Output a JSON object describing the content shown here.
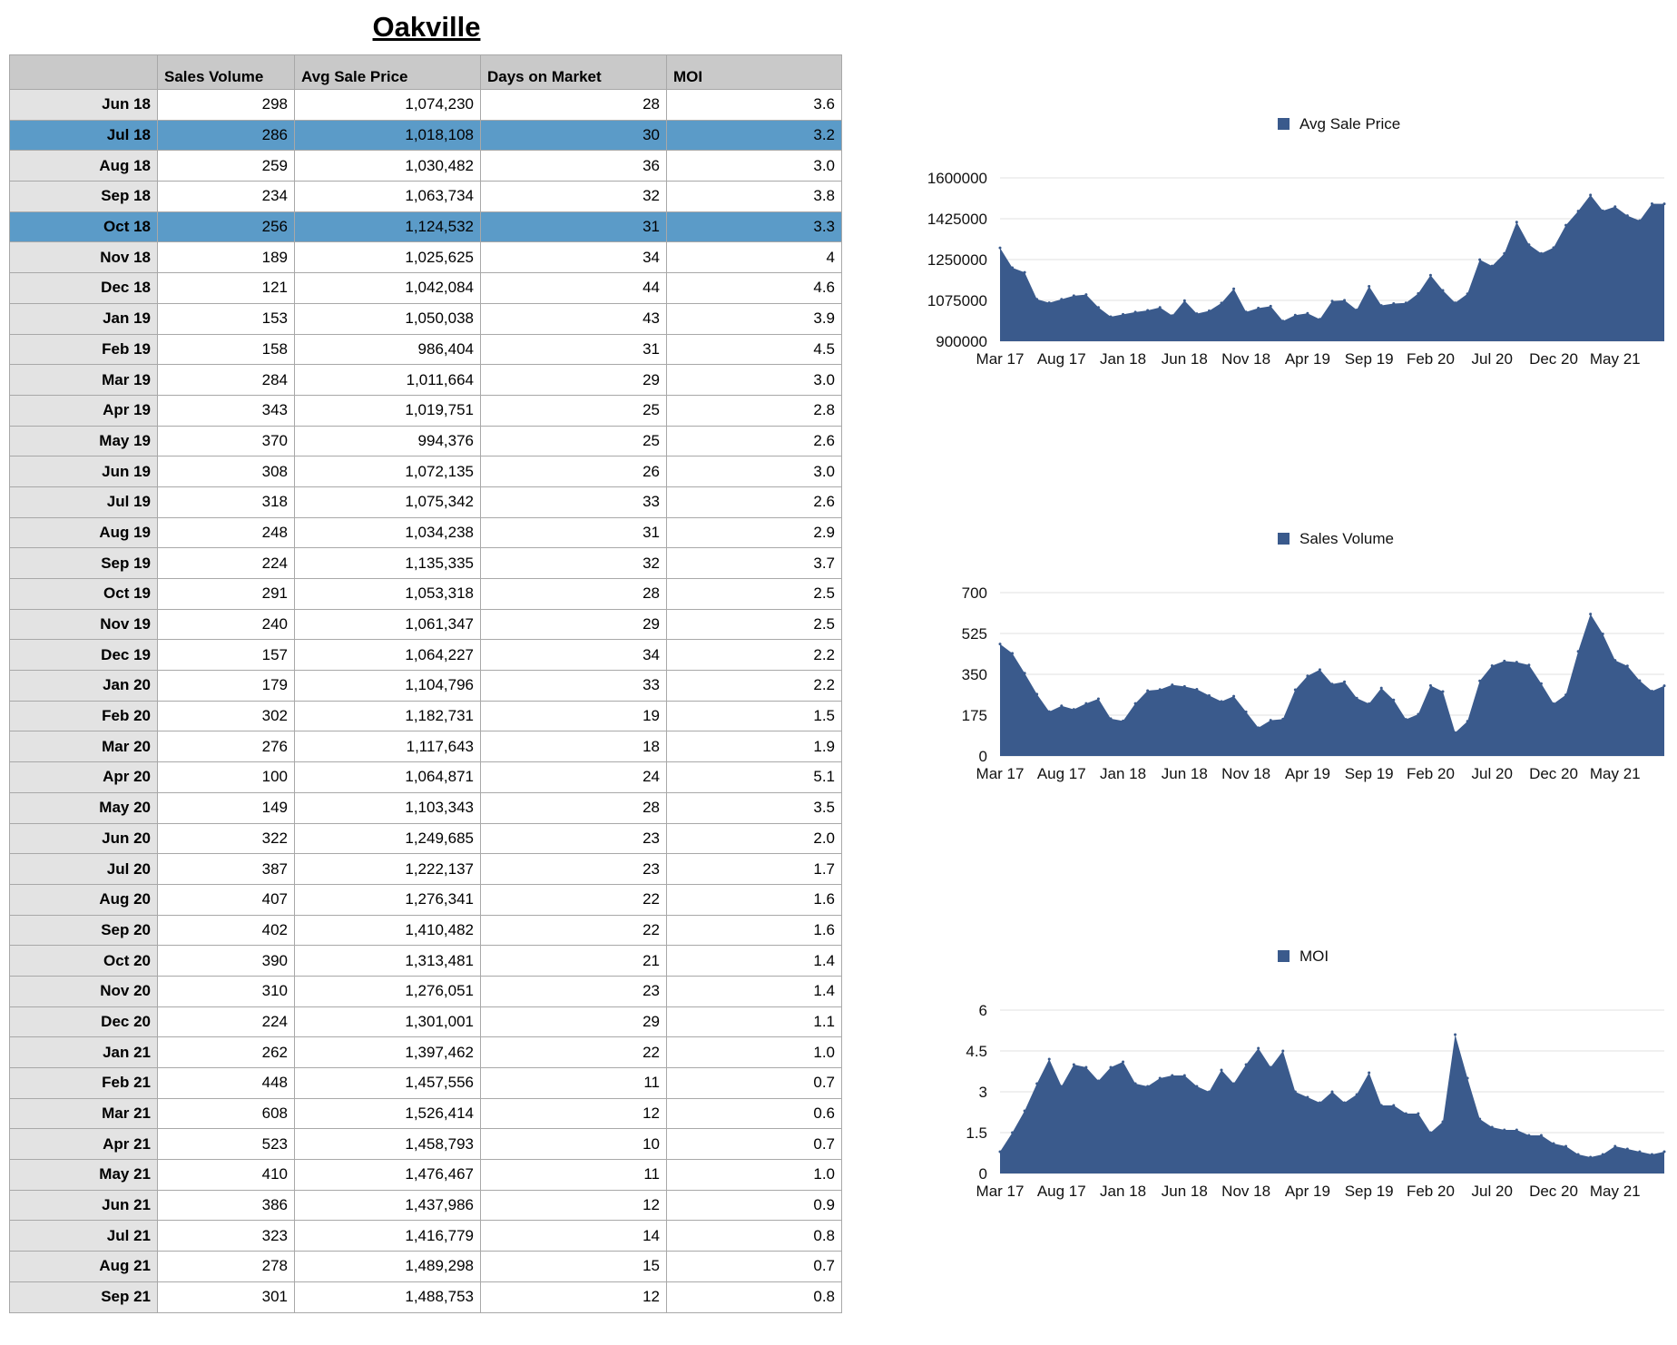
{
  "title": "Oakville",
  "table": {
    "headers": [
      "",
      "Sales Volume",
      "Avg Sale Price",
      "Days on Market",
      "MOI"
    ],
    "highlighted_months": [
      "Jul 18",
      "Oct 18"
    ],
    "rows": [
      [
        "Jun 18",
        "298",
        "1,074,230",
        "28",
        "3.6"
      ],
      [
        "Jul 18",
        "286",
        "1,018,108",
        "30",
        "3.2"
      ],
      [
        "Aug 18",
        "259",
        "1,030,482",
        "36",
        "3.0"
      ],
      [
        "Sep 18",
        "234",
        "1,063,734",
        "32",
        "3.8"
      ],
      [
        "Oct 18",
        "256",
        "1,124,532",
        "31",
        "3.3"
      ],
      [
        "Nov 18",
        "189",
        "1,025,625",
        "34",
        "4"
      ],
      [
        "Dec 18",
        "121",
        "1,042,084",
        "44",
        "4.6"
      ],
      [
        "Jan 19",
        "153",
        "1,050,038",
        "43",
        "3.9"
      ],
      [
        "Feb 19",
        "158",
        "986,404",
        "31",
        "4.5"
      ],
      [
        "Mar 19",
        "284",
        "1,011,664",
        "29",
        "3.0"
      ],
      [
        "Apr 19",
        "343",
        "1,019,751",
        "25",
        "2.8"
      ],
      [
        "May 19",
        "370",
        "994,376",
        "25",
        "2.6"
      ],
      [
        "Jun 19",
        "308",
        "1,072,135",
        "26",
        "3.0"
      ],
      [
        "Jul 19",
        "318",
        "1,075,342",
        "33",
        "2.6"
      ],
      [
        "Aug 19",
        "248",
        "1,034,238",
        "31",
        "2.9"
      ],
      [
        "Sep 19",
        "224",
        "1,135,335",
        "32",
        "3.7"
      ],
      [
        "Oct 19",
        "291",
        "1,053,318",
        "28",
        "2.5"
      ],
      [
        "Nov 19",
        "240",
        "1,061,347",
        "29",
        "2.5"
      ],
      [
        "Dec 19",
        "157",
        "1,064,227",
        "34",
        "2.2"
      ],
      [
        "Jan 20",
        "179",
        "1,104,796",
        "33",
        "2.2"
      ],
      [
        "Feb 20",
        "302",
        "1,182,731",
        "19",
        "1.5"
      ],
      [
        "Mar 20",
        "276",
        "1,117,643",
        "18",
        "1.9"
      ],
      [
        "Apr 20",
        "100",
        "1,064,871",
        "24",
        "5.1"
      ],
      [
        "May 20",
        "149",
        "1,103,343",
        "28",
        "3.5"
      ],
      [
        "Jun 20",
        "322",
        "1,249,685",
        "23",
        "2.0"
      ],
      [
        "Jul 20",
        "387",
        "1,222,137",
        "23",
        "1.7"
      ],
      [
        "Aug 20",
        "407",
        "1,276,341",
        "22",
        "1.6"
      ],
      [
        "Sep 20",
        "402",
        "1,410,482",
        "22",
        "1.6"
      ],
      [
        "Oct 20",
        "390",
        "1,313,481",
        "21",
        "1.4"
      ],
      [
        "Nov 20",
        "310",
        "1,276,051",
        "23",
        "1.4"
      ],
      [
        "Dec 20",
        "224",
        "1,301,001",
        "29",
        "1.1"
      ],
      [
        "Jan 21",
        "262",
        "1,397,462",
        "22",
        "1.0"
      ],
      [
        "Feb 21",
        "448",
        "1,457,556",
        "11",
        "0.7"
      ],
      [
        "Mar 21",
        "608",
        "1,526,414",
        "12",
        "0.6"
      ],
      [
        "Apr 21",
        "523",
        "1,458,793",
        "10",
        "0.7"
      ],
      [
        "May 21",
        "410",
        "1,476,467",
        "11",
        "1.0"
      ],
      [
        "Jun 21",
        "386",
        "1,437,986",
        "12",
        "0.9"
      ],
      [
        "Jul 21",
        "323",
        "1,416,779",
        "14",
        "0.8"
      ],
      [
        "Aug 21",
        "278",
        "1,489,298",
        "15",
        "0.7"
      ],
      [
        "Sep 21",
        "301",
        "1,488,753",
        "12",
        "0.8"
      ]
    ]
  },
  "colors": {
    "series": "#3a5a8c",
    "highlight": "#5b9bc8",
    "row_header": "#e3e3e3",
    "column_header": "#c9c9c9"
  },
  "chart_data": [
    {
      "type": "area",
      "series_name": "Avg Sale Price",
      "ylim": [
        900000,
        1600000
      ],
      "yticks": [
        "900000",
        "1075000",
        "1250000",
        "1425000",
        "1600000"
      ],
      "xticks": [
        "Mar 17",
        "Aug 17",
        "Jan 18",
        "Jun 18",
        "Nov 18",
        "Apr 19",
        "Sep 19",
        "Feb 20",
        "Jul 20",
        "Dec 20",
        "May 21"
      ],
      "legend": "top",
      "x": [
        "Mar 17",
        "Apr 17",
        "May 17",
        "Jun 17",
        "Jul 17",
        "Aug 17",
        "Sep 17",
        "Oct 17",
        "Nov 17",
        "Dec 17",
        "Jan 18",
        "Feb 18",
        "Mar 18",
        "Apr 18",
        "May 18",
        "Jun 18",
        "Jul 18",
        "Aug 18",
        "Sep 18",
        "Oct 18",
        "Nov 18",
        "Dec 18",
        "Jan 19",
        "Feb 19",
        "Mar 19",
        "Apr 19",
        "May 19",
        "Jun 19",
        "Jul 19",
        "Aug 19",
        "Sep 19",
        "Oct 19",
        "Nov 19",
        "Dec 19",
        "Jan 20",
        "Feb 20",
        "Mar 20",
        "Apr 20",
        "May 20",
        "Jun 20",
        "Jul 20",
        "Aug 20",
        "Sep 20",
        "Oct 20",
        "Nov 20",
        "Dec 20",
        "Jan 21",
        "Feb 21",
        "Mar 21",
        "Apr 21",
        "May 21",
        "Jun 21",
        "Jul 21",
        "Aug 21",
        "Sep 21"
      ],
      "values": [
        1300000,
        1215000,
        1195000,
        1080000,
        1065000,
        1080000,
        1095000,
        1100000,
        1045000,
        1005000,
        1015000,
        1025000,
        1032000,
        1045000,
        1010000,
        1074230,
        1018108,
        1030482,
        1063734,
        1124532,
        1025625,
        1042084,
        1050038,
        986404,
        1011664,
        1019751,
        994376,
        1072135,
        1075342,
        1034238,
        1135335,
        1053318,
        1061347,
        1064227,
        1104796,
        1182731,
        1117643,
        1064871,
        1103343,
        1249685,
        1222137,
        1276341,
        1410482,
        1313481,
        1276051,
        1301001,
        1397462,
        1457556,
        1526414,
        1458793,
        1476467,
        1437986,
        1416779,
        1489298,
        1488753
      ]
    },
    {
      "type": "area",
      "series_name": "Sales Volume",
      "ylim": [
        0,
        700
      ],
      "yticks": [
        "0",
        "175",
        "350",
        "525",
        "700"
      ],
      "xticks": [
        "Mar 17",
        "Aug 17",
        "Jan 18",
        "Jun 18",
        "Nov 18",
        "Apr 19",
        "Sep 19",
        "Feb 20",
        "Jul 20",
        "Dec 20",
        "May 21"
      ],
      "legend": "top",
      "x": [
        "Mar 17",
        "Apr 17",
        "May 17",
        "Jun 17",
        "Jul 17",
        "Aug 17",
        "Sep 17",
        "Oct 17",
        "Nov 17",
        "Dec 17",
        "Jan 18",
        "Feb 18",
        "Mar 18",
        "Apr 18",
        "May 18",
        "Jun 18",
        "Jul 18",
        "Aug 18",
        "Sep 18",
        "Oct 18",
        "Nov 18",
        "Dec 18",
        "Jan 19",
        "Feb 19",
        "Mar 19",
        "Apr 19",
        "May 19",
        "Jun 19",
        "Jul 19",
        "Aug 19",
        "Sep 19",
        "Oct 19",
        "Nov 19",
        "Dec 19",
        "Jan 20",
        "Feb 20",
        "Mar 20",
        "Apr 20",
        "May 20",
        "Jun 20",
        "Jul 20",
        "Aug 20",
        "Sep 20",
        "Oct 20",
        "Nov 20",
        "Dec 20",
        "Jan 21",
        "Feb 21",
        "Mar 21",
        "Apr 21",
        "May 21",
        "Jun 21",
        "Jul 21",
        "Aug 21",
        "Sep 21"
      ],
      "values": [
        480,
        440,
        355,
        265,
        190,
        215,
        200,
        225,
        245,
        160,
        150,
        225,
        280,
        285,
        305,
        298,
        286,
        259,
        234,
        256,
        189,
        121,
        153,
        158,
        284,
        343,
        370,
        308,
        318,
        248,
        224,
        291,
        240,
        157,
        179,
        302,
        276,
        100,
        149,
        322,
        387,
        407,
        402,
        390,
        310,
        224,
        262,
        448,
        608,
        523,
        410,
        386,
        323,
        278,
        301
      ]
    },
    {
      "type": "area",
      "series_name": "MOI",
      "ylim": [
        0,
        6
      ],
      "yticks": [
        "0",
        "1.5",
        "3",
        "4.5",
        "6"
      ],
      "xticks": [
        "Mar 17",
        "Aug 17",
        "Jan 18",
        "Jun 18",
        "Nov 18",
        "Apr 19",
        "Sep 19",
        "Feb 20",
        "Jul 20",
        "Dec 20",
        "May 21"
      ],
      "legend": "top",
      "x": [
        "Mar 17",
        "Apr 17",
        "May 17",
        "Jun 17",
        "Jul 17",
        "Aug 17",
        "Sep 17",
        "Oct 17",
        "Nov 17",
        "Dec 17",
        "Jan 18",
        "Feb 18",
        "Mar 18",
        "Apr 18",
        "May 18",
        "Jun 18",
        "Jul 18",
        "Aug 18",
        "Sep 18",
        "Oct 18",
        "Nov 18",
        "Dec 18",
        "Jan 19",
        "Feb 19",
        "Mar 19",
        "Apr 19",
        "May 19",
        "Jun 19",
        "Jul 19",
        "Aug 19",
        "Sep 19",
        "Oct 19",
        "Nov 19",
        "Dec 19",
        "Jan 20",
        "Feb 20",
        "Mar 20",
        "Apr 20",
        "May 20",
        "Jun 20",
        "Jul 20",
        "Aug 20",
        "Sep 20",
        "Oct 20",
        "Nov 20",
        "Dec 20",
        "Jan 21",
        "Feb 21",
        "Mar 21",
        "Apr 21",
        "May 21",
        "Jun 21",
        "Jul 21",
        "Aug 21",
        "Sep 21"
      ],
      "values": [
        0.8,
        1.5,
        2.3,
        3.3,
        4.2,
        3.2,
        4.0,
        3.9,
        3.4,
        3.9,
        4.1,
        3.3,
        3.2,
        3.5,
        3.6,
        3.6,
        3.2,
        3.0,
        3.8,
        3.3,
        4,
        4.6,
        3.9,
        4.5,
        3.0,
        2.8,
        2.6,
        3.0,
        2.6,
        2.9,
        3.7,
        2.5,
        2.5,
        2.2,
        2.2,
        1.5,
        1.9,
        5.1,
        3.5,
        2.0,
        1.7,
        1.6,
        1.6,
        1.4,
        1.4,
        1.1,
        1.0,
        0.7,
        0.6,
        0.7,
        1.0,
        0.9,
        0.8,
        0.7,
        0.8
      ]
    }
  ]
}
